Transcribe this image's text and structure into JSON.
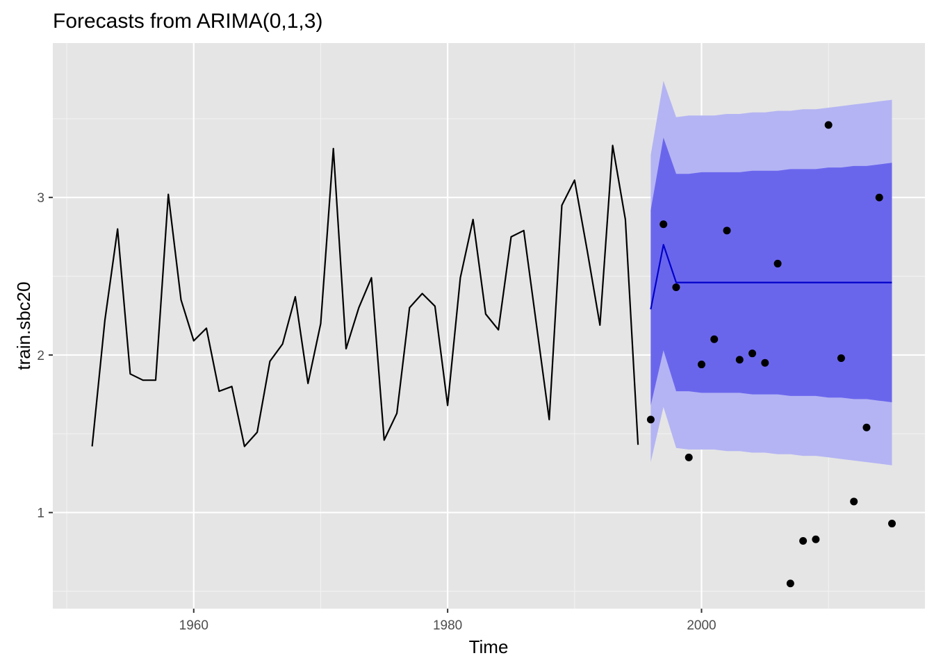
{
  "chart_data": {
    "type": "line",
    "title": "Forecasts from ARIMA(0,1,3)",
    "xlabel": "Time",
    "ylabel": "train.sbc20",
    "xlim": [
      1948.9,
      2017.6
    ],
    "ylim": [
      0.39,
      3.98
    ],
    "x_ticks": [
      1960,
      1980,
      2000
    ],
    "y_ticks": [
      1,
      2,
      3
    ],
    "x_tick_labels": [
      "1960",
      "1980",
      "2000"
    ],
    "y_tick_labels": [
      "1",
      "2",
      "3"
    ],
    "grid": true,
    "colors": {
      "panel_background": "#e5e5e5",
      "grid_major": "#ffffff",
      "grid_minor": "#f2f2f2",
      "history_line": "#000000",
      "forecast_line": "#0000cc",
      "interval_95": "#b4b4f4",
      "interval_80": "#6a66ec",
      "test_points": "#000000"
    },
    "history": {
      "x": [
        1952,
        1953,
        1954,
        1955,
        1956,
        1957,
        1958,
        1959,
        1960,
        1961,
        1962,
        1963,
        1964,
        1965,
        1966,
        1967,
        1968,
        1969,
        1970,
        1971,
        1972,
        1973,
        1974,
        1975,
        1976,
        1977,
        1978,
        1979,
        1980,
        1981,
        1982,
        1983,
        1984,
        1985,
        1986,
        1987,
        1988,
        1989,
        1990,
        1991,
        1992,
        1993,
        1994,
        1995
      ],
      "y": [
        1.42,
        2.22,
        2.8,
        1.88,
        1.84,
        1.84,
        3.02,
        2.35,
        2.09,
        2.17,
        1.77,
        1.8,
        1.42,
        1.51,
        1.96,
        2.07,
        2.37,
        1.82,
        2.2,
        3.31,
        2.04,
        2.3,
        2.49,
        1.46,
        1.63,
        2.3,
        2.39,
        2.31,
        1.68,
        2.49,
        2.86,
        2.26,
        2.16,
        2.75,
        2.79,
        2.19,
        1.59,
        2.95,
        3.11,
        2.66,
        2.19,
        3.33,
        2.86,
        1.43
      ]
    },
    "forecast": {
      "x": [
        1996,
        1997,
        1998,
        1999,
        2000,
        2001,
        2002,
        2003,
        2004,
        2005,
        2006,
        2007,
        2008,
        2009,
        2010,
        2011,
        2012,
        2013,
        2014,
        2015
      ],
      "mean": [
        2.29,
        2.7,
        2.46,
        2.46,
        2.46,
        2.46,
        2.46,
        2.46,
        2.46,
        2.46,
        2.46,
        2.46,
        2.46,
        2.46,
        2.46,
        2.46,
        2.46,
        2.46,
        2.46,
        2.46
      ],
      "lo80": [
        1.68,
        2.03,
        1.77,
        1.77,
        1.76,
        1.76,
        1.76,
        1.76,
        1.75,
        1.75,
        1.75,
        1.74,
        1.74,
        1.74,
        1.73,
        1.73,
        1.72,
        1.72,
        1.71,
        1.7
      ],
      "hi80": [
        2.92,
        3.38,
        3.15,
        3.15,
        3.16,
        3.16,
        3.16,
        3.16,
        3.17,
        3.17,
        3.17,
        3.18,
        3.18,
        3.18,
        3.19,
        3.19,
        3.2,
        3.2,
        3.21,
        3.22
      ],
      "lo95": [
        1.32,
        1.67,
        1.41,
        1.4,
        1.4,
        1.4,
        1.39,
        1.39,
        1.38,
        1.38,
        1.37,
        1.37,
        1.36,
        1.36,
        1.35,
        1.34,
        1.33,
        1.32,
        1.31,
        1.3
      ],
      "hi95": [
        3.27,
        3.74,
        3.51,
        3.52,
        3.52,
        3.52,
        3.53,
        3.53,
        3.54,
        3.54,
        3.55,
        3.55,
        3.56,
        3.56,
        3.57,
        3.58,
        3.59,
        3.6,
        3.61,
        3.62
      ]
    },
    "test_points": {
      "x": [
        1996,
        1997,
        1998,
        1999,
        2000,
        2001,
        2002,
        2003,
        2004,
        2005,
        2006,
        2007,
        2008,
        2009,
        2010,
        2011,
        2012,
        2013,
        2014,
        2015
      ],
      "y": [
        1.59,
        2.83,
        2.43,
        1.35,
        1.94,
        2.1,
        2.79,
        1.97,
        2.01,
        1.95,
        2.58,
        0.55,
        0.82,
        0.83,
        3.46,
        1.98,
        1.07,
        1.54,
        3.0,
        0.93
      ]
    }
  }
}
